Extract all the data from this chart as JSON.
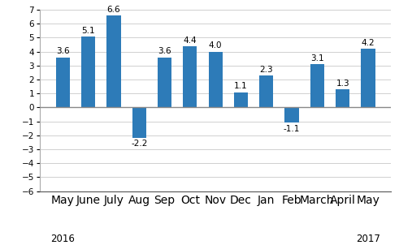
{
  "categories": [
    "May",
    "June",
    "July",
    "Aug",
    "Sep",
    "Oct",
    "Nov",
    "Dec",
    "Jan",
    "Feb",
    "March",
    "April",
    "May"
  ],
  "values": [
    3.6,
    5.1,
    6.6,
    -2.2,
    3.6,
    4.4,
    4.0,
    1.1,
    2.3,
    -1.1,
    3.1,
    1.3,
    4.2
  ],
  "bar_color": "#2d7bb8",
  "year_labels": [
    {
      "text": "2016",
      "index": 0
    },
    {
      "text": "2017",
      "index": 12
    }
  ],
  "ylim": [
    -6,
    7
  ],
  "yticks": [
    -6,
    -5,
    -4,
    -3,
    -2,
    -1,
    0,
    1,
    2,
    3,
    4,
    5,
    6,
    7
  ],
  "bar_width": 0.55,
  "label_fontsize": 7.5,
  "tick_fontsize": 7.5,
  "year_fontsize": 8.5,
  "grid_color": "#d0d0d0",
  "zero_line_color": "#888888",
  "bottom_spine_color": "#555555",
  "background_color": "#ffffff"
}
